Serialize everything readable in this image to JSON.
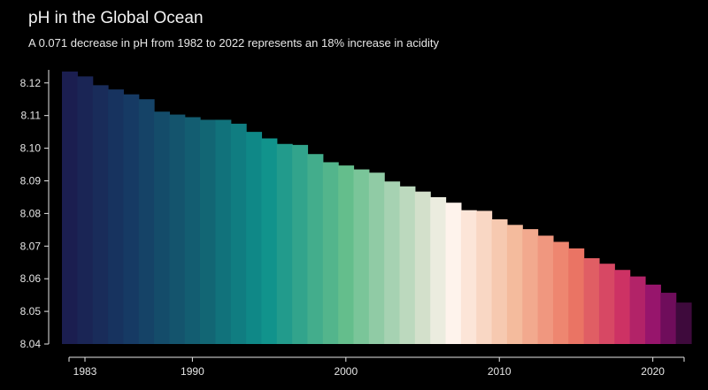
{
  "chart_data": {
    "type": "bar",
    "title": "pH in the Global Ocean",
    "subtitle": "A 0.071 decrease in pH from 1982 to 2022 represents an 18% increase in acidity",
    "xlabel": "",
    "ylabel": "",
    "ylim": [
      8.04,
      8.124
    ],
    "yticks": [
      8.04,
      8.05,
      8.06,
      8.07,
      8.08,
      8.09,
      8.1,
      8.11,
      8.12
    ],
    "xticks": [
      1983,
      1990,
      2000,
      2010,
      2020
    ],
    "x_range": [
      1982,
      2022
    ],
    "grid": false,
    "colormap": "diverging: dark navy → teal → cream → salmon → magenta → deep purple",
    "categories": [
      1982,
      1983,
      1984,
      1985,
      1986,
      1987,
      1988,
      1989,
      1990,
      1991,
      1992,
      1993,
      1994,
      1995,
      1996,
      1997,
      1998,
      1999,
      2000,
      2001,
      2002,
      2003,
      2004,
      2005,
      2006,
      2007,
      2008,
      2009,
      2010,
      2011,
      2012,
      2013,
      2014,
      2015,
      2016,
      2017,
      2018,
      2019,
      2020,
      2021,
      2022
    ],
    "values": [
      8.1235,
      8.122,
      8.1193,
      8.118,
      8.1165,
      8.115,
      8.1112,
      8.1103,
      8.1095,
      8.1087,
      8.1087,
      8.1075,
      8.105,
      8.103,
      8.1013,
      8.101,
      8.0982,
      8.0957,
      8.0947,
      8.0935,
      8.0925,
      8.0898,
      8.0883,
      8.0867,
      8.085,
      8.0833,
      8.081,
      8.0808,
      8.0782,
      8.0765,
      8.0752,
      8.0732,
      8.0713,
      8.0693,
      8.0663,
      8.0646,
      8.0627,
      8.0607,
      8.0582,
      8.0557,
      8.0527
    ]
  }
}
